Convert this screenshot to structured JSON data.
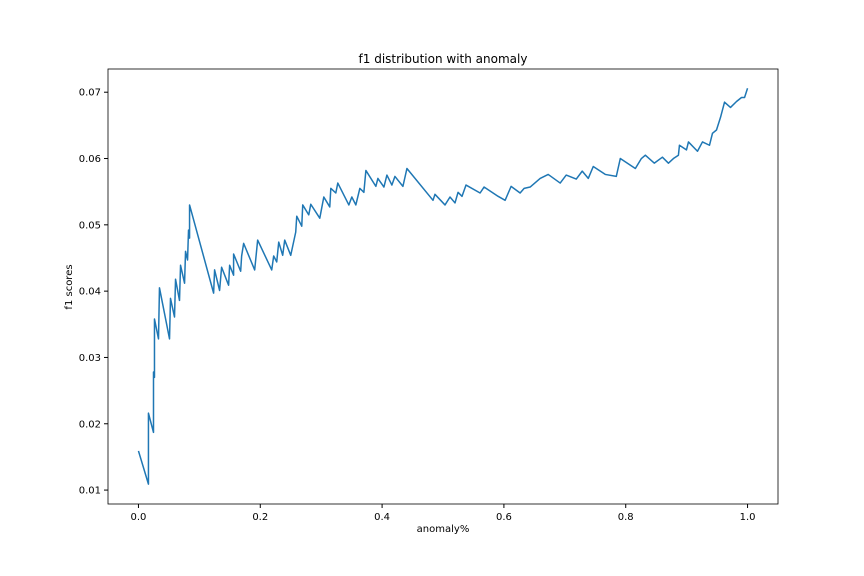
{
  "chart_data": {
    "type": "line",
    "title": "f1 distribution with anomaly",
    "xlabel": "anomaly%",
    "ylabel": "f1 scores",
    "xlim": [
      -0.05,
      1.05
    ],
    "xticks": [
      {
        "value": 0,
        "label": "0.0"
      },
      0.2,
      0.4,
      0.6,
      0.8,
      {
        "value": 1,
        "label": "1.0"
      }
    ],
    "ylim": [
      0.0079,
      0.0735
    ],
    "yticks": [
      0.01,
      0.02,
      0.03,
      0.04,
      0.05,
      0.06,
      0.07
    ],
    "grid": false,
    "x": [
      0.0,
      0.0164,
      0.0164,
      0.0247,
      0.0247,
      0.0263,
      0.0263,
      0.0329,
      0.0345,
      0.051,
      0.0526,
      0.0592,
      0.0609,
      0.0674,
      0.0691,
      0.0757,
      0.0773,
      0.0806,
      0.0822,
      0.0839,
      0.0839,
      0.1234,
      0.125,
      0.1332,
      0.1365,
      0.148,
      0.1497,
      0.1562,
      0.1562,
      0.1678,
      0.1694,
      0.1727,
      0.1908,
      0.1957,
      0.2188,
      0.222,
      0.227,
      0.2303,
      0.2368,
      0.2401,
      0.25,
      0.2582,
      0.2599,
      0.2681,
      0.2697,
      0.2796,
      0.2829,
      0.2977,
      0.3043,
      0.3141,
      0.3158,
      0.324,
      0.3273,
      0.3454,
      0.3503,
      0.3569,
      0.3635,
      0.3701,
      0.3734,
      0.3898,
      0.3931,
      0.403,
      0.4079,
      0.4161,
      0.4211,
      0.4342,
      0.4408,
      0.4836,
      0.4868,
      0.5033,
      0.5115,
      0.5197,
      0.5247,
      0.5312,
      0.5378,
      0.5609,
      0.5674,
      0.5905,
      0.602,
      0.6118,
      0.6266,
      0.6332,
      0.6431,
      0.6595,
      0.6727,
      0.6924,
      0.7023,
      0.7188,
      0.7286,
      0.7385,
      0.7467,
      0.7664,
      0.7845,
      0.7911,
      0.8158,
      0.8257,
      0.8322,
      0.847,
      0.8602,
      0.8701,
      0.8783,
      0.8865,
      0.8882,
      0.8997,
      0.903,
      0.9178,
      0.926,
      0.9375,
      0.9424,
      0.949,
      0.9556,
      0.9622,
      0.972,
      0.9819,
      0.9901,
      0.9951,
      1.0
    ],
    "series": [
      {
        "color": "#1f77b4",
        "values": [
          0.0159,
          0.0109,
          0.0216,
          0.0187,
          0.0278,
          0.027,
          0.0358,
          0.0328,
          0.0405,
          0.0328,
          0.0389,
          0.0361,
          0.0418,
          0.0386,
          0.0439,
          0.0412,
          0.046,
          0.0447,
          0.0492,
          0.048,
          0.053,
          0.0397,
          0.0432,
          0.0401,
          0.0436,
          0.0409,
          0.0439,
          0.0424,
          0.0456,
          0.043,
          0.0453,
          0.0472,
          0.0432,
          0.0477,
          0.0432,
          0.0453,
          0.0444,
          0.0474,
          0.0454,
          0.0477,
          0.0454,
          0.0489,
          0.0513,
          0.0498,
          0.053,
          0.0515,
          0.0531,
          0.051,
          0.0542,
          0.0527,
          0.0555,
          0.0548,
          0.0563,
          0.053,
          0.0542,
          0.053,
          0.0555,
          0.0549,
          0.0582,
          0.0558,
          0.057,
          0.0557,
          0.0575,
          0.056,
          0.0573,
          0.0558,
          0.0585,
          0.0537,
          0.0546,
          0.053,
          0.0542,
          0.0533,
          0.0549,
          0.0543,
          0.056,
          0.0548,
          0.0557,
          0.0543,
          0.0537,
          0.0558,
          0.0548,
          0.0555,
          0.0557,
          0.057,
          0.0576,
          0.0563,
          0.0575,
          0.0569,
          0.0581,
          0.057,
          0.0588,
          0.0576,
          0.0573,
          0.06,
          0.0585,
          0.06,
          0.0605,
          0.0593,
          0.0602,
          0.0593,
          0.06,
          0.0605,
          0.062,
          0.0613,
          0.0625,
          0.0611,
          0.0625,
          0.062,
          0.0638,
          0.0643,
          0.0662,
          0.0685,
          0.0677,
          0.0686,
          0.0692,
          0.0692,
          0.0706
        ]
      }
    ]
  }
}
